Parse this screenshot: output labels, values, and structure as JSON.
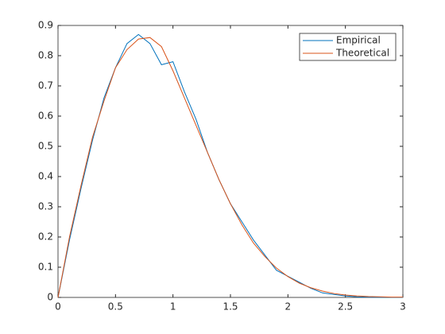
{
  "chart_data": {
    "type": "line",
    "x": [
      0,
      0.1,
      0.2,
      0.3,
      0.4,
      0.5,
      0.6,
      0.7,
      0.8,
      0.9,
      1.0,
      1.1,
      1.2,
      1.3,
      1.4,
      1.5,
      1.6,
      1.7,
      1.8,
      1.9,
      2.0,
      2.1,
      2.2,
      2.3,
      2.4,
      2.5,
      2.6,
      2.7,
      2.8,
      2.9,
      3.0
    ],
    "series": [
      {
        "name": "Empirical",
        "color": "#0072bd",
        "values": [
          0,
          0.19,
          0.36,
          0.52,
          0.66,
          0.76,
          0.84,
          0.87,
          0.84,
          0.77,
          0.78,
          0.68,
          0.59,
          0.48,
          0.39,
          0.31,
          0.25,
          0.19,
          0.14,
          0.09,
          0.07,
          0.05,
          0.03,
          0.015,
          0.01,
          0.005,
          0.002,
          0.001,
          0,
          0,
          0
        ]
      },
      {
        "name": "Theoretical",
        "color": "#d95319",
        "values": [
          0,
          0.2,
          0.37,
          0.53,
          0.65,
          0.76,
          0.82,
          0.855,
          0.86,
          0.83,
          0.75,
          0.66,
          0.57,
          0.48,
          0.39,
          0.31,
          0.24,
          0.18,
          0.135,
          0.097,
          0.069,
          0.047,
          0.032,
          0.021,
          0.013,
          0.008,
          0.005,
          0.003,
          0.002,
          0.001,
          0.001
        ]
      }
    ],
    "xlim": [
      0,
      3
    ],
    "ylim": [
      0,
      0.9
    ],
    "xticks": [
      0,
      0.5,
      1,
      1.5,
      2,
      2.5,
      3
    ],
    "yticks": [
      0,
      0.1,
      0.2,
      0.3,
      0.4,
      0.5,
      0.6,
      0.7,
      0.8,
      0.9
    ],
    "legend": "top-right"
  }
}
